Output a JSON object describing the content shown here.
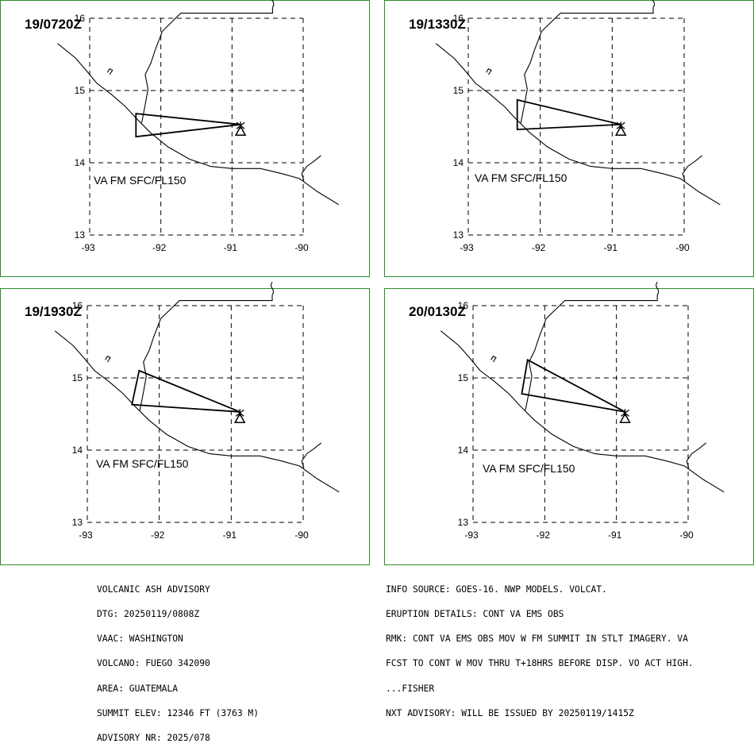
{
  "panels": [
    {
      "time_label": "19/0720Z",
      "va_label": "VA FM SFC/FL150",
      "polygon": [
        [
          -92.35,
          14.68
        ],
        [
          -92.35,
          14.36
        ],
        [
          -90.88,
          14.53
        ]
      ]
    },
    {
      "time_label": "19/1330Z",
      "va_label": "VA FM SFC/FL150",
      "polygon": [
        [
          -92.32,
          14.87
        ],
        [
          -92.32,
          14.46
        ],
        [
          -90.88,
          14.53
        ]
      ]
    },
    {
      "time_label": "19/1930Z",
      "va_label": "VA FM SFC/FL150",
      "polygon": [
        [
          -92.28,
          15.1
        ],
        [
          -92.38,
          14.63
        ],
        [
          -90.88,
          14.53
        ]
      ]
    },
    {
      "time_label": "20/0130Z",
      "va_label": "VA FM SFC/FL150",
      "polygon": [
        [
          -92.24,
          15.25
        ],
        [
          -92.32,
          14.78
        ],
        [
          -90.88,
          14.53
        ]
      ]
    }
  ],
  "axes": {
    "x_ticks": [
      "-93",
      "-92",
      "-91",
      "-90"
    ],
    "y_ticks": [
      "16",
      "15",
      "14",
      "13"
    ],
    "lon_range": [
      -93,
      -89.8
    ],
    "lat_range": [
      12.8,
      16.2
    ]
  },
  "volcano": {
    "name": "FUEGO",
    "lon": -90.88,
    "lat": 14.47
  },
  "advisory_left": [
    "VOLCANIC ASH ADVISORY",
    "DTG: 20250119/0808Z",
    "VAAC: WASHINGTON",
    "VOLCANO: FUEGO 342090",
    "AREA: GUATEMALA",
    "SUMMIT ELEV: 12346 FT (3763 M)",
    "ADVISORY NR: 2025/078"
  ],
  "advisory_right": [
    "INFO SOURCE: GOES-16. NWP MODELS. VOLCAT.",
    "ERUPTION DETAILS: CONT VA EMS OBS",
    "RMK: CONT VA EMS OBS MOV W FM SUMMIT IN STLT IMAGERY. VA",
    "FCST TO CONT W MOV THRU T+18HRS BEFORE DISP. VO ACT HIGH.",
    "...FISHER",
    "NXT ADVISORY: WILL BE ISSUED BY 20250119/1415Z"
  ],
  "colors": {
    "panel_border": "#2e8b2e",
    "lines": "#000000"
  }
}
